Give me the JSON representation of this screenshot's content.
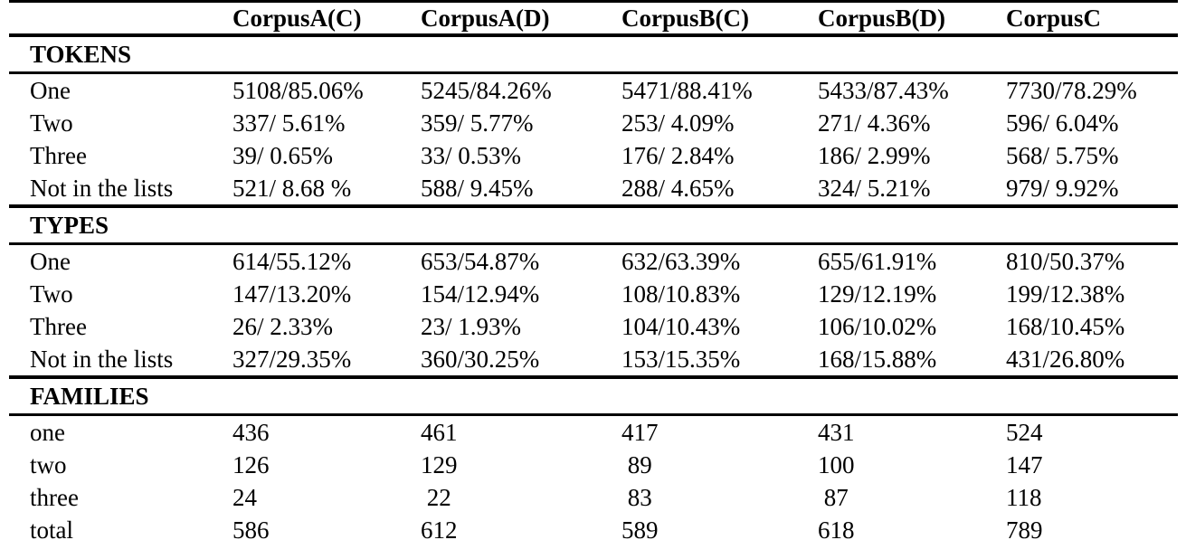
{
  "page": {
    "background_color": "#ffffff",
    "text_color": "#000000"
  },
  "table": {
    "columns": [
      "",
      "CorpusA(C)",
      "CorpusA(D)",
      "CorpusB(C)",
      "CorpusB(D)",
      "CorpusC"
    ],
    "sections": [
      {
        "title": "TOKENS",
        "rows": [
          {
            "label": "One",
            "values": [
              "5108/85.06%",
              "5245/84.26%",
              "5471/88.41%",
              "5433/87.43%",
              "7730/78.29%"
            ]
          },
          {
            "label": "Two",
            "values": [
              "337/ 5.61%",
              "359/ 5.77%",
              "253/ 4.09%",
              "271/ 4.36%",
              "596/ 6.04%"
            ]
          },
          {
            "label": "Three",
            "values": [
              "39/ 0.65%",
              "33/ 0.53%",
              "176/ 2.84%",
              "186/ 2.99%",
              "568/ 5.75%"
            ]
          },
          {
            "label": "Not in the lists",
            "values": [
              "521/ 8.68 %",
              "588/ 9.45%",
              "288/ 4.65%",
              "324/ 5.21%",
              "979/ 9.92%"
            ]
          }
        ]
      },
      {
        "title": "TYPES",
        "rows": [
          {
            "label": "One",
            "values": [
              "614/55.12%",
              "653/54.87%",
              "632/63.39%",
              "655/61.91%",
              "810/50.37%"
            ]
          },
          {
            "label": "Two",
            "values": [
              "147/13.20%",
              "154/12.94%",
              "108/10.83%",
              "129/12.19%",
              "199/12.38%"
            ]
          },
          {
            "label": "Three",
            "values": [
              "26/ 2.33%",
              "23/ 1.93%",
              "104/10.43%",
              "106/10.02%",
              "168/10.45%"
            ]
          },
          {
            "label": "Not in the lists",
            "values": [
              "327/29.35%",
              "360/30.25%",
              "153/15.35%",
              "168/15.88%",
              "431/26.80%"
            ]
          }
        ]
      },
      {
        "title": "FAMILIES",
        "rows": [
          {
            "label": "one",
            "values": [
              "436",
              "461",
              "417",
              "431",
              "524"
            ]
          },
          {
            "label": "two",
            "values": [
              "126",
              "129",
              " 89",
              "100",
              "147"
            ]
          },
          {
            "label": "three",
            "values": [
              "24",
              " 22",
              " 83",
              " 87",
              "118"
            ]
          },
          {
            "label": "total",
            "values": [
              "586",
              "612",
              "589",
              "618",
              "789"
            ]
          }
        ]
      }
    ]
  }
}
